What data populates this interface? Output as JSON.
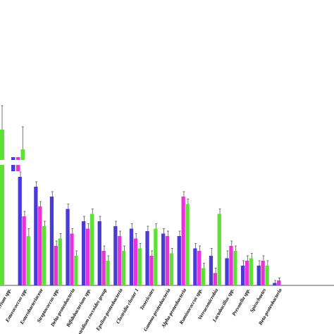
{
  "chart_data": {
    "type": "bar",
    "title": "",
    "xlabel": "",
    "ylabel": "",
    "axis_break": true,
    "grid": false,
    "legend": "none",
    "categories": [
      "Bacterium spp.",
      "Enterococcus spp.",
      "Enterobacteriaceae",
      "Streptococcus spp.",
      "Delta-proteobacteria",
      "Bifidobacterium spp.",
      "Clostridium coccoides group",
      "Epsilon-proteobacteria",
      "Clostridia cluster 1",
      "Tenericutes",
      "Gamma-proteobacteria",
      "Alpha-proteobacteria",
      "Ruminococcus spp.",
      "Verrucomicrobia",
      "Lactobacillus spp.",
      "Prevotella spp.",
      "Spirochaetes",
      "Beta-proteobacteria"
    ],
    "series": [
      {
        "color": "#4a3bd6",
        "values": [
          null,
          44,
          40,
          36,
          31,
          26,
          26,
          24,
          23,
          22,
          21,
          20,
          15,
          12,
          11,
          8,
          8,
          1
        ],
        "errors": [
          null,
          2,
          2,
          2,
          2,
          2,
          2,
          2,
          2,
          2,
          2,
          2,
          2,
          3,
          3,
          2,
          2,
          1
        ]
      },
      {
        "color": "#e932d8",
        "values": [
          null,
          28,
          32,
          16,
          21,
          23,
          14,
          20,
          19,
          12,
          20,
          36,
          14,
          5,
          16,
          10,
          10,
          2
        ],
        "errors": [
          null,
          2,
          2,
          2,
          2,
          2,
          2,
          2,
          2,
          2,
          2,
          2,
          2,
          2,
          2,
          2,
          2,
          1
        ]
      },
      {
        "color": "#5fe037",
        "values": [
          null,
          20,
          24,
          19,
          12,
          29,
          10,
          14,
          15,
          23,
          13,
          33,
          7,
          29,
          14,
          11,
          8,
          0
        ],
        "errors": [
          null,
          3,
          2,
          2,
          2,
          2,
          2,
          2,
          2,
          2,
          2,
          2,
          2,
          2,
          2,
          2,
          2,
          0
        ]
      }
    ]
  }
}
